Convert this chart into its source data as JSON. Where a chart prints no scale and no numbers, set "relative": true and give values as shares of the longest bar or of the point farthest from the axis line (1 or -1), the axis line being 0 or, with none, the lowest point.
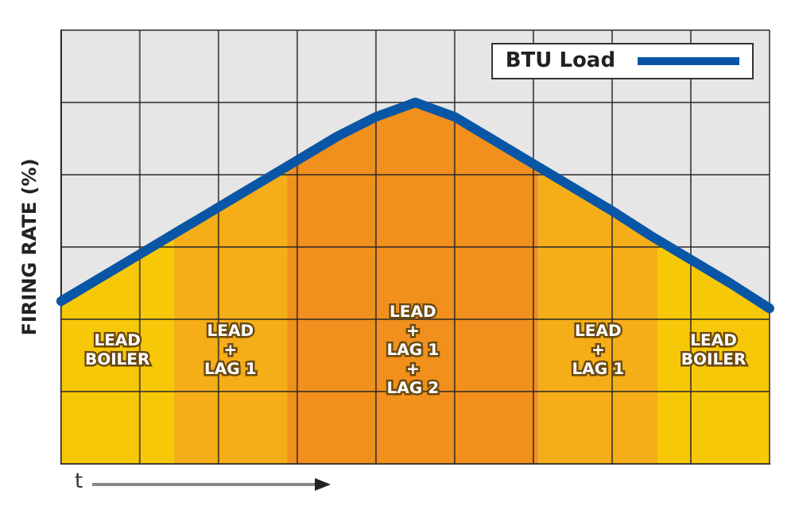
{
  "chart_data": {
    "type": "line",
    "relative": true,
    "ylabel": "FIRING RATE (%)",
    "xlabel": "t",
    "legend": "top right",
    "grid": true,
    "categories": [
      null,
      null,
      null,
      null,
      null,
      null,
      null,
      null,
      null,
      null,
      null,
      null,
      null,
      null,
      null,
      null,
      null,
      null,
      null
    ],
    "series": [
      {
        "name": "BTU Load",
        "color": "#0a56a6",
        "values": [
          0.45,
          0.515,
          0.58,
          0.645,
          0.71,
          0.775,
          0.84,
          0.905,
          0.96,
          1,
          0.96,
          0.895,
          0.83,
          0.765,
          0.7,
          0.63,
          0.565,
          0.5,
          0.43
        ]
      }
    ],
    "annotations": [
      "LEAD\nBOILER",
      "LEAD\n+\nLAG 1",
      "LEAD\n+\nLAG 1\n+\nLAG 2",
      "LEAD\n+\nLAG 1",
      "LEAD\nBOILER"
    ]
  }
}
